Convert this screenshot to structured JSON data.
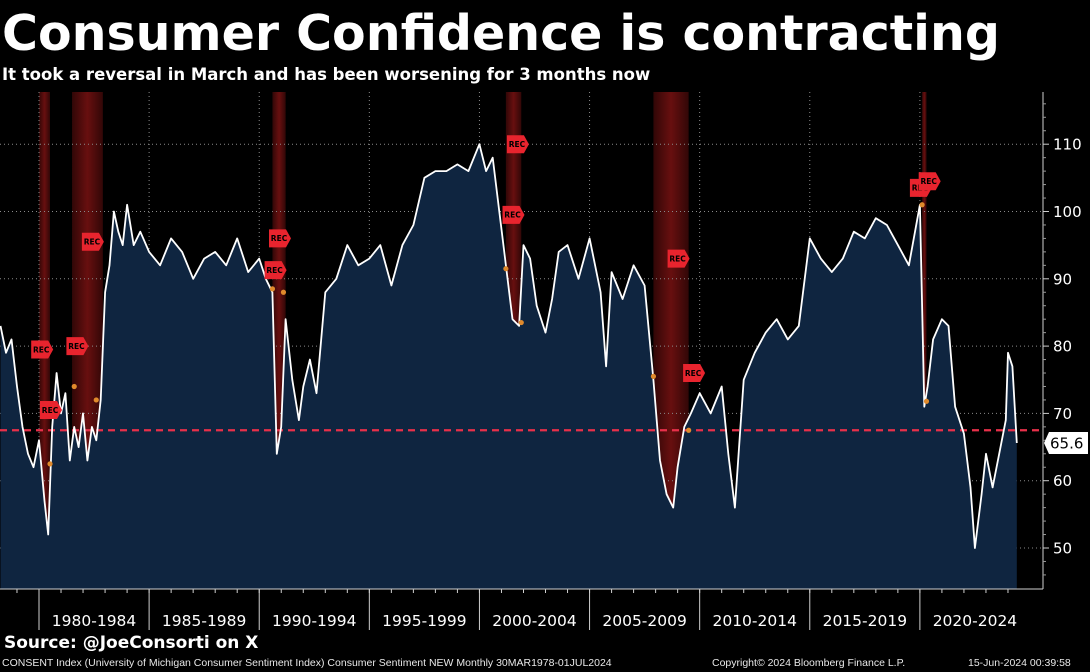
{
  "title": "Consumer Confidence is contracting",
  "subtitle": "It took a reversal in March and has been worsening for 3 months now",
  "source": "Source: @JoeConsorti on X",
  "footer": {
    "left": "CONSENT Index (University of Michigan Consumer Sentiment Index) Consumer Sentiment NEW  Monthly 30MAR1978-01JUL2024",
    "middle": "Copyright© 2024 Bloomberg Finance L.P.",
    "right": "15-Jun-2024 00:39:58"
  },
  "colors": {
    "background": "#000000",
    "area_fill": "#0f2540",
    "line": "#ffffff",
    "recession_band": "#7a1212",
    "reference_line": "#e8304a",
    "rec_marker": "#e8242e",
    "event_dot": "#e08a2c",
    "grid": "#8a8a8a"
  },
  "chart_data": {
    "type": "area",
    "title": "Consumer Confidence is contracting",
    "xlabel": "",
    "ylabel": "",
    "x_range": [
      1978.25,
      2024.5
    ],
    "ylim": [
      44,
      118
    ],
    "y_ticks": [
      50,
      60,
      70,
      80,
      90,
      100,
      110
    ],
    "y_axis_position": "right",
    "x_tick_labels": [
      "1980-1984",
      "1985-1989",
      "1990-1994",
      "1995-1999",
      "2000-2004",
      "2005-2009",
      "2010-2014",
      "2015-2019",
      "2020-2024"
    ],
    "x_tick_ranges": [
      [
        1980,
        1985
      ],
      [
        1985,
        1990
      ],
      [
        1990,
        1995
      ],
      [
        1995,
        2000
      ],
      [
        2000,
        2005
      ],
      [
        2005,
        2010
      ],
      [
        2010,
        2015
      ],
      [
        2015,
        2020
      ],
      [
        2020,
        2025
      ]
    ],
    "grid": true,
    "last_value": 65.6,
    "last_value_label": "65.6",
    "reference_line": 67.5,
    "recession_bands": [
      [
        1980.0,
        1980.5
      ],
      [
        1981.5,
        1982.9
      ],
      [
        1990.6,
        1991.2
      ],
      [
        2001.2,
        2001.9
      ],
      [
        2007.9,
        2009.5
      ],
      [
        2020.1,
        2020.3
      ]
    ],
    "rec_markers": [
      {
        "x": 1980.1,
        "y": 79.5,
        "label": "REC"
      },
      {
        "x": 1980.5,
        "y": 70.5,
        "label": "REC"
      },
      {
        "x": 1981.7,
        "y": 80.0,
        "label": "REC"
      },
      {
        "x": 1982.4,
        "y": 95.5,
        "label": "REC"
      },
      {
        "x": 1990.9,
        "y": 96.0,
        "label": "REC"
      },
      {
        "x": 1990.7,
        "y": 91.3,
        "label": "REC"
      },
      {
        "x": 2001.7,
        "y": 110.0,
        "label": "REC"
      },
      {
        "x": 2001.5,
        "y": 99.5,
        "label": "REC"
      },
      {
        "x": 2009.0,
        "y": 93.0,
        "label": "REC"
      },
      {
        "x": 2009.7,
        "y": 76.0,
        "label": "REC"
      },
      {
        "x": 2020.0,
        "y": 103.5,
        "label": "REC"
      },
      {
        "x": 2020.4,
        "y": 104.5,
        "label": "REC"
      }
    ],
    "event_dots": [
      {
        "x": 1980.5,
        "y": 62.5
      },
      {
        "x": 1981.6,
        "y": 74.0
      },
      {
        "x": 1982.6,
        "y": 72.0
      },
      {
        "x": 1990.6,
        "y": 88.5
      },
      {
        "x": 1991.1,
        "y": 88.0
      },
      {
        "x": 2001.2,
        "y": 91.5
      },
      {
        "x": 2001.9,
        "y": 83.5
      },
      {
        "x": 2007.9,
        "y": 75.5
      },
      {
        "x": 2009.5,
        "y": 67.5
      },
      {
        "x": 2020.1,
        "y": 101.0
      },
      {
        "x": 2020.3,
        "y": 71.8
      }
    ],
    "series": [
      {
        "x": [
          1978.25,
          1978.5,
          1978.75,
          1979.0,
          1979.25,
          1979.5,
          1979.75,
          1980.0,
          1980.25,
          1980.42,
          1980.6,
          1980.8,
          1981.0,
          1981.2,
          1981.4,
          1981.6,
          1981.8,
          1982.0,
          1982.2,
          1982.4,
          1982.6,
          1982.8,
          1983.0,
          1983.2,
          1983.4,
          1983.6,
          1983.8,
          1984.0,
          1984.3,
          1984.6,
          1985.0,
          1985.5,
          1986.0,
          1986.5,
          1987.0,
          1987.5,
          1988.0,
          1988.5,
          1989.0,
          1989.5,
          1990.0,
          1990.3,
          1990.6,
          1990.8,
          1991.0,
          1991.2,
          1991.5,
          1991.8,
          1992.0,
          1992.3,
          1992.6,
          1993.0,
          1993.5,
          1994.0,
          1994.5,
          1995.0,
          1995.5,
          1996.0,
          1996.5,
          1997.0,
          1997.5,
          1998.0,
          1998.5,
          1999.0,
          1999.5,
          2000.0,
          2000.3,
          2000.6,
          2000.9,
          2001.2,
          2001.5,
          2001.8,
          2002.0,
          2002.3,
          2002.6,
          2003.0,
          2003.3,
          2003.6,
          2004.0,
          2004.5,
          2005.0,
          2005.5,
          2005.75,
          2006.0,
          2006.5,
          2007.0,
          2007.5,
          2007.9,
          2008.2,
          2008.5,
          2008.8,
          2009.0,
          2009.3,
          2009.6,
          2010.0,
          2010.5,
          2011.0,
          2011.3,
          2011.6,
          2012.0,
          2012.5,
          2013.0,
          2013.5,
          2014.0,
          2014.5,
          2015.0,
          2015.5,
          2016.0,
          2016.5,
          2017.0,
          2017.5,
          2018.0,
          2018.5,
          2019.0,
          2019.5,
          2020.0,
          2020.2,
          2020.35,
          2020.6,
          2021.0,
          2021.3,
          2021.6,
          2022.0,
          2022.3,
          2022.5,
          2022.8,
          2023.0,
          2023.3,
          2023.6,
          2023.9,
          2024.0,
          2024.2,
          2024.4
        ],
        "y": [
          83,
          79,
          81,
          74,
          68,
          64,
          62,
          66,
          57,
          52,
          68,
          76,
          70,
          73,
          63,
          68,
          65,
          70,
          63,
          68,
          66,
          72,
          88,
          92,
          100,
          97,
          95,
          101,
          95,
          97,
          94,
          92,
          96,
          94,
          90,
          93,
          94,
          92,
          96,
          91,
          93,
          90,
          88,
          64,
          68,
          84,
          75,
          69,
          74,
          78,
          73,
          88,
          90,
          95,
          92,
          93,
          95,
          89,
          95,
          98,
          105,
          106,
          106,
          107,
          106,
          110,
          106,
          108,
          100,
          92,
          84,
          83,
          95,
          93,
          86,
          82,
          87,
          94,
          95,
          90,
          96,
          88,
          77,
          91,
          87,
          92,
          89,
          75,
          63,
          58,
          56,
          62,
          68,
          70,
          73,
          70,
          74,
          64,
          56,
          75,
          79,
          82,
          84,
          81,
          83,
          96,
          93,
          91,
          93,
          97,
          96,
          99,
          98,
          95,
          92,
          101,
          71,
          74,
          81,
          84,
          83,
          71,
          67,
          59,
          50,
          58,
          64,
          59,
          64,
          69,
          79,
          77,
          65.6
        ]
      }
    ]
  }
}
